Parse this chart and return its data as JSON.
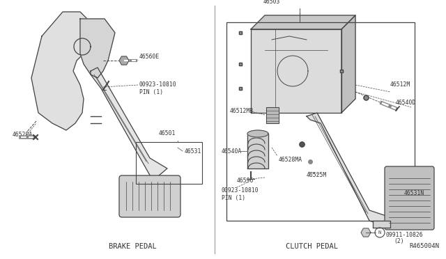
{
  "bg_color": "#ffffff",
  "fig_width": 6.4,
  "fig_height": 3.72,
  "dpi": 100,
  "line_color": "#444444",
  "text_color": "#333333",
  "light_gray": "#d8d8d8",
  "mid_gray": "#bbbbbb",
  "brake_label": "BRAKE PEDAL",
  "clutch_label": "CLUTCH PEDAL",
  "ref_label": "R465004N",
  "font_size_label": 5.8,
  "font_size_section": 7.5,
  "font_size_ref": 6.5
}
